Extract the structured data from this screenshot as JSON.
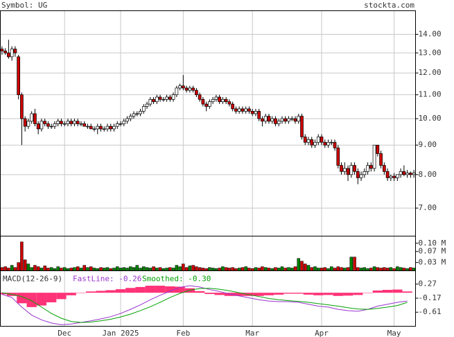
{
  "header": {
    "symbol": "Symbol: UG",
    "site": "stockta.com"
  },
  "chart_data": [
    {
      "type": "candlestick",
      "log_scale": true,
      "grid": true,
      "up_color": "#ffffff",
      "down_color": "#cc0000",
      "xlim": [
        -0.5,
        125.5
      ],
      "xticks": [
        {
          "value": 19,
          "label": "Dec"
        },
        {
          "value": 36,
          "label": "Jan 2025"
        },
        {
          "value": 55,
          "label": "Feb"
        },
        {
          "value": 76,
          "label": "Mar"
        },
        {
          "value": 97,
          "label": "Apr"
        },
        {
          "value": 119,
          "label": "May"
        }
      ],
      "ylim": [
        6.26,
        15.38
      ],
      "yticks": [
        {
          "value": 14,
          "label": "14.00"
        },
        {
          "value": 13,
          "label": "13.00"
        },
        {
          "value": 12,
          "label": "12.00"
        },
        {
          "value": 11,
          "label": "11.00"
        },
        {
          "value": 10,
          "label": "10.00"
        },
        {
          "value": 9,
          "label": "9.00"
        },
        {
          "value": 8,
          "label": "8.00"
        },
        {
          "value": 7,
          "label": "7.00"
        }
      ],
      "open": [
        13.2,
        13.1,
        13.0,
        12.8,
        13.2,
        12.8,
        11.0,
        10.0,
        9.7,
        9.9,
        10.2,
        9.8,
        9.6,
        9.9,
        9.8,
        9.7,
        9.7,
        9.8,
        9.9,
        9.8,
        9.8,
        9.9,
        9.8,
        9.9,
        9.8,
        9.8,
        9.7,
        9.7,
        9.6,
        9.6,
        9.7,
        9.6,
        9.6,
        9.7,
        9.6,
        9.7,
        9.8,
        9.8,
        9.9,
        10.0,
        10.1,
        10.2,
        10.2,
        10.3,
        10.5,
        10.6,
        10.8,
        10.7,
        10.9,
        10.8,
        10.8,
        10.9,
        10.8,
        11.0,
        11.3,
        11.4,
        11.3,
        11.2,
        11.3,
        11.2,
        11.0,
        10.8,
        10.6,
        10.5,
        10.7,
        10.8,
        10.9,
        10.7,
        10.8,
        10.7,
        10.6,
        10.4,
        10.3,
        10.4,
        10.3,
        10.4,
        10.3,
        10.2,
        10.3,
        10.0,
        9.9,
        10.1,
        9.9,
        10.0,
        9.8,
        9.9,
        10.0,
        9.9,
        10.0,
        10.0,
        9.9,
        10.1,
        9.3,
        9.1,
        9.2,
        9.0,
        9.1,
        9.3,
        9.1,
        9.0,
        9.1,
        9.1,
        8.9,
        8.3,
        8.1,
        8.2,
        8.0,
        8.3,
        8.1,
        7.9,
        8.0,
        8.1,
        8.3,
        8.2,
        9.0,
        8.7,
        8.3,
        8.1,
        7.9,
        7.95,
        7.9,
        8.0,
        8.1,
        8.0,
        8.05,
        8.0
      ],
      "high": [
        13.35,
        13.25,
        13.7,
        13.35,
        13.35,
        12.9,
        11.1,
        10.1,
        10.0,
        10.3,
        10.4,
        9.9,
        10.0,
        10.0,
        9.9,
        9.8,
        9.9,
        10.0,
        10.0,
        9.9,
        10.0,
        10.0,
        10.0,
        10.0,
        9.9,
        9.9,
        9.8,
        9.8,
        9.7,
        9.8,
        9.8,
        9.7,
        9.8,
        9.8,
        9.8,
        9.9,
        9.9,
        10.0,
        10.1,
        10.2,
        10.3,
        10.3,
        10.4,
        10.6,
        10.7,
        10.9,
        10.9,
        11.0,
        11.0,
        10.9,
        11.0,
        11.0,
        11.1,
        11.4,
        11.5,
        11.9,
        11.4,
        11.4,
        11.4,
        11.3,
        11.1,
        10.9,
        10.7,
        10.8,
        10.9,
        11.0,
        11.0,
        10.9,
        10.9,
        10.8,
        10.7,
        10.5,
        10.5,
        10.5,
        10.5,
        10.5,
        10.4,
        10.4,
        10.4,
        10.1,
        10.2,
        10.2,
        10.1,
        10.1,
        10.0,
        10.1,
        10.1,
        10.1,
        10.1,
        10.1,
        10.2,
        10.2,
        9.4,
        9.3,
        9.3,
        9.2,
        9.4,
        9.4,
        9.2,
        9.2,
        9.2,
        9.2,
        9.0,
        8.4,
        8.4,
        8.3,
        8.4,
        8.4,
        8.2,
        8.1,
        8.2,
        8.4,
        8.4,
        9.0,
        9.0,
        8.8,
        8.4,
        8.2,
        8.0,
        8.05,
        8.0,
        8.2,
        8.3,
        8.15,
        8.1,
        8.15
      ],
      "low": [
        12.9,
        12.9,
        12.7,
        12.6,
        12.8,
        10.8,
        9.0,
        9.5,
        9.6,
        9.8,
        9.7,
        9.4,
        9.5,
        9.7,
        9.6,
        9.6,
        9.6,
        9.7,
        9.7,
        9.7,
        9.7,
        9.7,
        9.7,
        9.7,
        9.7,
        9.7,
        9.6,
        9.6,
        9.5,
        9.4,
        9.5,
        9.5,
        9.5,
        9.5,
        9.5,
        9.6,
        9.7,
        9.7,
        9.8,
        9.9,
        10.0,
        10.1,
        10.1,
        10.2,
        10.4,
        10.5,
        10.6,
        10.6,
        10.7,
        10.7,
        10.7,
        10.7,
        10.7,
        10.9,
        11.2,
        11.2,
        11.1,
        11.1,
        11.1,
        10.9,
        10.7,
        10.5,
        10.3,
        10.4,
        10.6,
        10.7,
        10.6,
        10.6,
        10.6,
        10.5,
        10.3,
        10.2,
        10.2,
        10.2,
        10.2,
        10.2,
        10.1,
        10.1,
        9.9,
        9.7,
        9.8,
        9.8,
        9.8,
        9.7,
        9.7,
        9.8,
        9.8,
        9.8,
        9.9,
        9.8,
        9.8,
        9.2,
        9.0,
        9.0,
        8.9,
        8.9,
        9.0,
        9.0,
        8.9,
        8.9,
        9.0,
        8.8,
        8.2,
        8.0,
        8.0,
        7.8,
        7.9,
        8.0,
        7.7,
        7.8,
        7.9,
        8.0,
        8.1,
        8.1,
        8.6,
        8.2,
        8.0,
        7.8,
        7.8,
        7.8,
        7.8,
        7.9,
        7.95,
        7.9,
        7.9,
        7.9
      ],
      "close": [
        13.1,
        13.0,
        12.8,
        13.2,
        13.0,
        11.0,
        10.0,
        9.7,
        9.9,
        10.2,
        9.8,
        9.6,
        9.9,
        9.8,
        9.7,
        9.7,
        9.8,
        9.9,
        9.8,
        9.8,
        9.9,
        9.8,
        9.9,
        9.8,
        9.8,
        9.7,
        9.7,
        9.6,
        9.6,
        9.7,
        9.6,
        9.6,
        9.7,
        9.6,
        9.7,
        9.8,
        9.8,
        9.9,
        10.0,
        10.1,
        10.2,
        10.2,
        10.3,
        10.5,
        10.6,
        10.8,
        10.7,
        10.9,
        10.8,
        10.8,
        10.9,
        10.8,
        11.0,
        11.3,
        11.4,
        11.3,
        11.2,
        11.3,
        11.2,
        11.0,
        10.8,
        10.6,
        10.5,
        10.7,
        10.8,
        10.9,
        10.7,
        10.8,
        10.7,
        10.6,
        10.4,
        10.3,
        10.4,
        10.3,
        10.4,
        10.3,
        10.2,
        10.3,
        10.0,
        9.9,
        10.1,
        9.9,
        10.0,
        9.8,
        9.9,
        10.0,
        9.9,
        10.0,
        10.0,
        9.9,
        10.1,
        9.3,
        9.1,
        9.2,
        9.0,
        9.1,
        9.3,
        9.1,
        9.0,
        9.1,
        9.1,
        8.9,
        8.3,
        8.1,
        8.2,
        8.0,
        8.3,
        8.1,
        7.9,
        8.0,
        8.1,
        8.3,
        8.2,
        9.0,
        8.7,
        8.3,
        8.1,
        7.9,
        7.95,
        7.9,
        8.0,
        8.1,
        8.0,
        8.05,
        8.0,
        8.05
      ]
    },
    {
      "type": "bar",
      "up_color": "#008000",
      "down_color": "#cc0000",
      "ylim": [
        0,
        0.126
      ],
      "yticks": [
        {
          "value": 0.1,
          "label": "0.10 M"
        },
        {
          "value": 0.07,
          "label": "0.07 M"
        },
        {
          "value": 0.03,
          "label": "0.03 M"
        }
      ],
      "values": [
        0.012,
        0.015,
        0.01,
        0.02,
        0.012,
        0.03,
        0.105,
        0.04,
        0.025,
        0.012,
        0.02,
        0.015,
        0.01,
        0.018,
        0.01,
        0.012,
        0.008,
        0.015,
        0.01,
        0.012,
        0.008,
        0.01,
        0.012,
        0.015,
        0.01,
        0.02,
        0.012,
        0.015,
        0.01,
        0.008,
        0.012,
        0.01,
        0.012,
        0.008,
        0.01,
        0.015,
        0.01,
        0.012,
        0.01,
        0.015,
        0.012,
        0.02,
        0.01,
        0.015,
        0.012,
        0.01,
        0.015,
        0.01,
        0.012,
        0.008,
        0.01,
        0.012,
        0.01,
        0.02,
        0.015,
        0.025,
        0.012,
        0.018,
        0.02,
        0.015,
        0.012,
        0.01,
        0.008,
        0.012,
        0.01,
        0.008,
        0.01,
        0.015,
        0.012,
        0.01,
        0.012,
        0.008,
        0.01,
        0.012,
        0.015,
        0.01,
        0.008,
        0.012,
        0.01,
        0.015,
        0.012,
        0.01,
        0.008,
        0.012,
        0.01,
        0.015,
        0.01,
        0.012,
        0.01,
        0.015,
        0.045,
        0.035,
        0.025,
        0.02,
        0.012,
        0.015,
        0.01,
        0.01,
        0.012,
        0.008,
        0.015,
        0.01,
        0.015,
        0.012,
        0.01,
        0.012,
        0.05,
        0.05,
        0.012,
        0.01,
        0.012,
        0.008,
        0.01,
        0.015,
        0.012,
        0.01,
        0.012,
        0.01,
        0.012,
        0.008,
        0.015,
        0.012,
        0.01,
        0.008,
        0.012,
        0.01
      ]
    },
    {
      "type": "line",
      "title": "MACD(12-26-9)",
      "ylim": [
        -1.05,
        0.688
      ],
      "yticks": [
        0.27,
        -0.17,
        -0.61
      ],
      "x": [
        0,
        3,
        6,
        9,
        12,
        15,
        18,
        21,
        24,
        27,
        30,
        33,
        36,
        39,
        42,
        45,
        48,
        51,
        54,
        57,
        60,
        63,
        66,
        69,
        72,
        75,
        78,
        81,
        84,
        87,
        90,
        93,
        96,
        99,
        102,
        105,
        108,
        111,
        114,
        117,
        120,
        123
      ],
      "histogram": {
        "color": "#ff3377",
        "values": [
          -0.05,
          -0.1,
          -0.33,
          -0.45,
          -0.4,
          -0.3,
          -0.2,
          -0.08,
          0.0,
          0.04,
          0.06,
          0.08,
          0.11,
          0.15,
          0.18,
          0.22,
          0.22,
          0.2,
          0.19,
          0.14,
          0.05,
          -0.04,
          -0.07,
          -0.1,
          -0.1,
          -0.1,
          -0.1,
          -0.08,
          -0.06,
          -0.03,
          -0.03,
          -0.06,
          -0.08,
          -0.07,
          -0.1,
          -0.09,
          -0.07,
          0.0,
          0.07,
          0.09,
          0.1,
          0.04
        ]
      },
      "series": [
        {
          "name": "FastLine: -0.26",
          "color": "#9933cc",
          "values": [
            -0.05,
            -0.15,
            -0.45,
            -0.7,
            -0.85,
            -0.95,
            -1.0,
            -0.98,
            -0.93,
            -0.88,
            -0.82,
            -0.75,
            -0.65,
            -0.52,
            -0.38,
            -0.22,
            -0.08,
            0.05,
            0.17,
            0.22,
            0.18,
            0.1,
            0.04,
            -0.04,
            -0.1,
            -0.16,
            -0.22,
            -0.26,
            -0.28,
            -0.28,
            -0.3,
            -0.36,
            -0.42,
            -0.45,
            -0.52,
            -0.56,
            -0.58,
            -0.52,
            -0.42,
            -0.36,
            -0.3,
            -0.26
          ]
        },
        {
          "name": "Smoothed: -0.30",
          "color": "#00a000",
          "values": [
            0.0,
            -0.05,
            -0.12,
            -0.25,
            -0.45,
            -0.65,
            -0.8,
            -0.9,
            -0.93,
            -0.92,
            -0.88,
            -0.83,
            -0.76,
            -0.67,
            -0.56,
            -0.44,
            -0.3,
            -0.15,
            -0.02,
            0.08,
            0.13,
            0.14,
            0.11,
            0.06,
            0.0,
            -0.06,
            -0.12,
            -0.18,
            -0.22,
            -0.25,
            -0.27,
            -0.3,
            -0.34,
            -0.38,
            -0.42,
            -0.47,
            -0.51,
            -0.52,
            -0.49,
            -0.45,
            -0.4,
            -0.3
          ]
        }
      ]
    }
  ]
}
